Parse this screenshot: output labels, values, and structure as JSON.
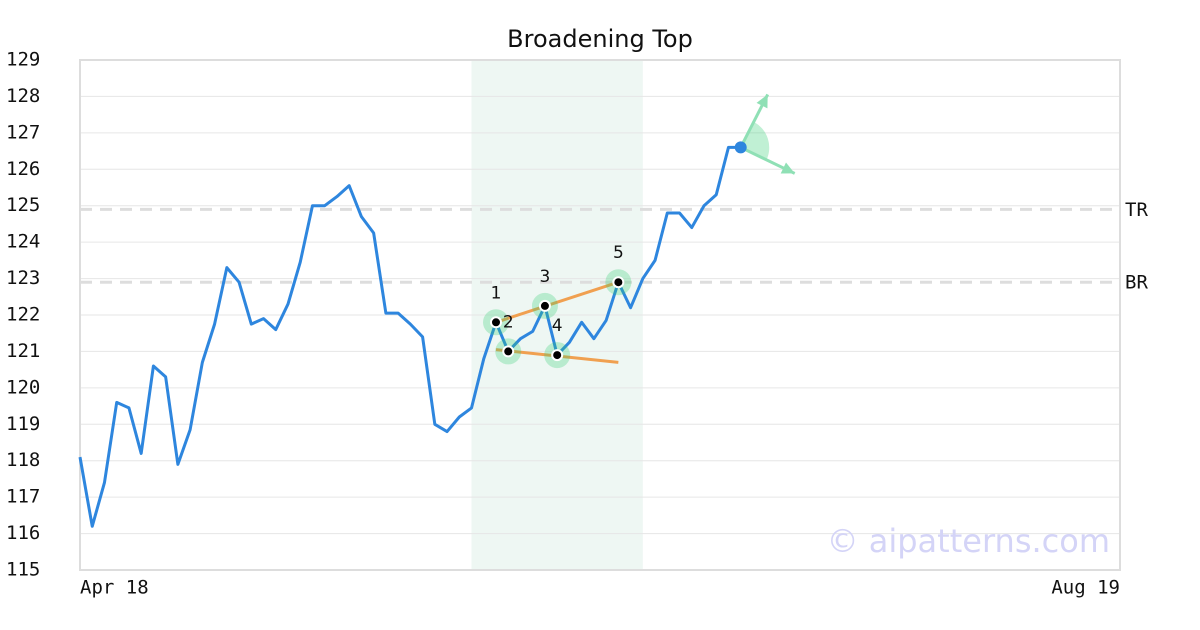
{
  "chart_data": {
    "type": "line",
    "title": "Broadening Top",
    "x": [
      0,
      1,
      2,
      3,
      4,
      5,
      6,
      7,
      8,
      9,
      10,
      11,
      12,
      13,
      14,
      15,
      16,
      17,
      18,
      19,
      20,
      21,
      22,
      23,
      24,
      25,
      26,
      27,
      28,
      29,
      30,
      31,
      32,
      33,
      34,
      35,
      36,
      37,
      38,
      39,
      40,
      41,
      42,
      43,
      44,
      45,
      46,
      47,
      48,
      49,
      50,
      51,
      52,
      53,
      54
    ],
    "values": [
      118.1,
      116.2,
      117.4,
      119.6,
      119.45,
      118.2,
      120.6,
      120.3,
      117.9,
      118.85,
      120.7,
      121.75,
      123.3,
      122.9,
      121.75,
      121.9,
      121.6,
      122.3,
      123.45,
      125.0,
      125.0,
      125.25,
      125.55,
      124.7,
      124.25,
      122.05,
      122.05,
      121.75,
      121.4,
      119.0,
      118.8,
      119.2,
      119.45,
      120.8,
      121.8,
      121.0,
      121.35,
      121.55,
      122.25,
      120.9,
      121.25,
      121.8,
      121.35,
      121.85,
      122.9,
      122.2,
      123.0,
      123.5,
      124.8,
      124.8,
      124.4,
      125.0,
      125.3,
      126.6,
      126.6
    ],
    "color": "#2e86de",
    "xlim": [
      0,
      85
    ],
    "xticks": [
      {
        "value": 0,
        "label": "Apr 18"
      },
      {
        "value": 85,
        "label": "Aug 19"
      }
    ],
    "ylim": [
      115,
      129
    ],
    "yticks": [
      115,
      116,
      117,
      118,
      119,
      120,
      121,
      122,
      123,
      124,
      125,
      126,
      127,
      128,
      129
    ],
    "grid": true,
    "highlight": [
      32,
      46
    ],
    "levels": [
      {
        "label": "TR",
        "value": 124.9
      },
      {
        "label": "BR",
        "value": 122.9
      }
    ],
    "pattern_points": [
      {
        "label": "1",
        "x": 34,
        "y": 121.8
      },
      {
        "label": "2",
        "x": 35,
        "y": 121.0
      },
      {
        "label": "3",
        "x": 38,
        "y": 122.25
      },
      {
        "label": "4",
        "x": 39,
        "y": 120.9
      },
      {
        "label": "5",
        "x": 44,
        "y": 122.9
      }
    ],
    "trendlines": [
      {
        "x": [
          34,
          44
        ],
        "y": [
          121.8,
          122.9
        ]
      },
      {
        "x": [
          34,
          44
        ],
        "y": [
          121.05,
          120.7
        ]
      }
    ],
    "watermark": "© aipatterns.com"
  }
}
